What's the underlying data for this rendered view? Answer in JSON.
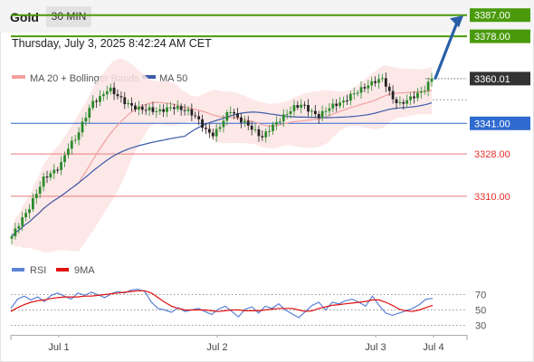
{
  "header": {
    "symbol": "Gold",
    "timeframe_label": "30 MIN",
    "datetime": "Thursday, July 3, 2025 8:42:24 AM CET"
  },
  "colors": {
    "bollinger": "#f2a0a0",
    "bollinger_fill": "#fde4e4",
    "ma50": "#3c5ba8",
    "resistance": "#4a9a0c",
    "support": "#2f6bd0",
    "level_line": "#e87a7a",
    "price_box": "#333333",
    "arrow": "#2a5fa8",
    "rsi": "#5b82d6",
    "rsi_ma": "#e01010",
    "candle_up": "#2c8a2c",
    "candle_down": "#222222"
  },
  "chart_data": [
    {
      "type": "candlestick",
      "legend": [
        {
          "key": "bb",
          "label": "MA 20 + Bollinger Bands"
        },
        {
          "key": "ma50",
          "label": "MA 50"
        }
      ],
      "ylim": [
        3294,
        3394
      ],
      "x_labels": [
        "Jul 1",
        "Jul 2",
        "Jul 3",
        "Jul 4"
      ],
      "close_path": [
        3293,
        3299,
        3304,
        3311,
        3318,
        3320,
        3323,
        3331,
        3335,
        3343,
        3350,
        3352,
        3356,
        3353,
        3350,
        3348,
        3347,
        3347,
        3346,
        3347,
        3348,
        3347,
        3346,
        3343,
        3338,
        3336,
        3341,
        3347,
        3343,
        3341,
        3338,
        3335,
        3339,
        3342,
        3345,
        3348,
        3349,
        3346,
        3344,
        3347,
        3349,
        3350,
        3353,
        3355,
        3357,
        3359,
        3360,
        3352,
        3349,
        3351,
        3353,
        3355,
        3360
      ],
      "levels": [
        {
          "label": "3387.00",
          "value": 3387,
          "kind": "resistance"
        },
        {
          "label": "3378.00",
          "value": 3378,
          "kind": "resistance"
        },
        {
          "label": "3360.01",
          "value": 3360.01,
          "kind": "current"
        },
        {
          "label": "3341.00",
          "value": 3341,
          "kind": "support"
        },
        {
          "label": "3328.00",
          "value": 3328,
          "kind": "level"
        },
        {
          "label": "3310.00",
          "value": 3310,
          "kind": "level"
        }
      ],
      "forecast": {
        "from": 3360,
        "to": 3387
      }
    },
    {
      "type": "line",
      "legend": [
        {
          "key": "rsi",
          "label": "RSI"
        },
        {
          "key": "rsi_ma",
          "label": "9MA"
        }
      ],
      "ylim": [
        20,
        80
      ],
      "y_ticks": [
        "70",
        "50",
        "30"
      ],
      "series": [
        {
          "name": "RSI",
          "values": [
            52,
            64,
            68,
            63,
            67,
            61,
            69,
            72,
            68,
            64,
            72,
            69,
            73,
            70,
            66,
            71,
            74,
            72,
            76,
            77,
            74,
            60,
            52,
            50,
            47,
            53,
            48,
            50,
            52,
            48,
            44,
            51,
            55,
            48,
            41,
            51,
            54,
            46,
            55,
            52,
            58,
            50,
            45,
            40,
            48,
            56,
            60,
            50,
            60,
            58,
            62,
            64,
            60,
            55,
            68,
            56,
            46,
            43,
            46,
            49,
            52,
            57,
            64,
            65
          ]
        },
        {
          "name": "9MA",
          "values": [
            48,
            53,
            57,
            60,
            62,
            63,
            65,
            66,
            67,
            67,
            67,
            68,
            68,
            69,
            70,
            71,
            72,
            73,
            74,
            75,
            75,
            72,
            66,
            60,
            55,
            52,
            50,
            50,
            50,
            50,
            49,
            48,
            49,
            50,
            50,
            49,
            49,
            49,
            50,
            51,
            52,
            52,
            52,
            50,
            48,
            49,
            52,
            54,
            56,
            57,
            58,
            59,
            60,
            61,
            63,
            63,
            60,
            56,
            51,
            49,
            48,
            50,
            53,
            56
          ]
        }
      ]
    }
  ]
}
